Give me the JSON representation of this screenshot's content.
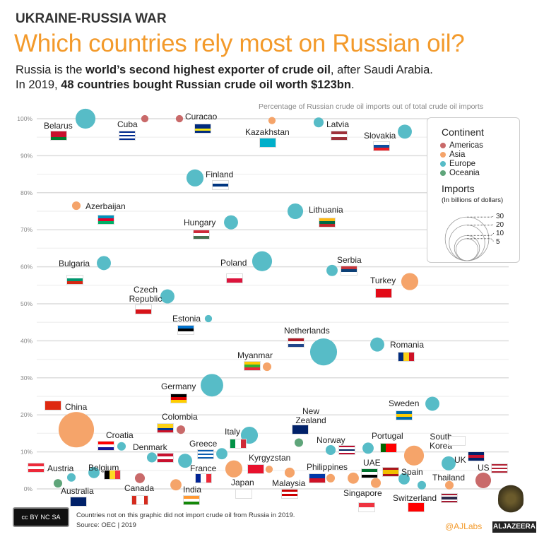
{
  "header": {
    "kicker": "UKRAINE-RUSSIA WAR",
    "title": "Which countries rely most on Russian oil?",
    "sub1_a": "Russia is the ",
    "sub1_b": "world’s second highest exporter of crude oil",
    "sub1_c": ", after Saudi Arabia.",
    "sub2_a": "In 2019, ",
    "sub2_b": "48 countries bought Russian crude oil worth $123bn",
    "sub2_c": "."
  },
  "footer": {
    "note": "Countries not on this graphic did not import crude oil from Russia in 2019.",
    "source": "Source: OEC | 2019",
    "cc": [
      "cc",
      "BY",
      "NC",
      "SA"
    ],
    "handle": "@AJLabs",
    "brand": "ALJAZEERA"
  },
  "chart_data": {
    "type": "scatter",
    "title": "Percentage of Russian crude oil imports out of total crude oil imports",
    "ylim": [
      0,
      100
    ],
    "yticks": [
      "0%",
      "10%",
      "20%",
      "30%",
      "40%",
      "50%",
      "60%",
      "70%",
      "80%",
      "90%",
      "100%"
    ],
    "grid": true,
    "legend_placement": "top-right",
    "legend": {
      "continent_title": "Continent",
      "imports_title": "Imports",
      "imports_sub": "(In billions of dollars)",
      "size_ticks": [
        30,
        20,
        10,
        5
      ],
      "continents": [
        {
          "name": "Americas",
          "color": "#c96a6a"
        },
        {
          "name": "Asia",
          "color": "#f5a46a"
        },
        {
          "name": "Europe",
          "color": "#57bcc7"
        },
        {
          "name": "Oceania",
          "color": "#5fa57a"
        }
      ]
    },
    "points": [
      {
        "name": "Belarus",
        "continent": "Europe",
        "pct": 100,
        "imports": 6,
        "flag": {
          "dir": "h",
          "colors": [
            "#c8102e",
            "#c8102e",
            "#007c30"
          ]
        }
      },
      {
        "name": "Cuba",
        "continent": "Americas",
        "pct": 100,
        "imports": 0.8,
        "flag": {
          "dir": "h",
          "colors": [
            "#002a8f",
            "#fff",
            "#002a8f",
            "#fff",
            "#002a8f"
          ]
        }
      },
      {
        "name": "Curacao",
        "continent": "Americas",
        "pct": 100,
        "imports": 0.8,
        "flag": {
          "dir": "h",
          "colors": [
            "#002b7f",
            "#002b7f",
            "#f9e814",
            "#002b7f"
          ]
        }
      },
      {
        "name": "Kazakhstan",
        "continent": "Asia",
        "pct": 99.5,
        "imports": 0.8,
        "flag": {
          "dir": "h",
          "colors": [
            "#00afca"
          ]
        }
      },
      {
        "name": "Latvia",
        "continent": "Europe",
        "pct": 99,
        "imports": 1.5,
        "flag": {
          "dir": "h",
          "colors": [
            "#9e3039",
            "#fff",
            "#9e3039"
          ]
        }
      },
      {
        "name": "Slovakia",
        "continent": "Europe",
        "pct": 96.5,
        "imports": 3,
        "flag": {
          "dir": "h",
          "colors": [
            "#fff",
            "#0b4ea2",
            "#ee1c25"
          ]
        }
      },
      {
        "name": "Finland",
        "continent": "Europe",
        "pct": 84,
        "imports": 4.4,
        "flag": {
          "dir": "h",
          "colors": [
            "#fff",
            "#003580",
            "#fff"
          ]
        }
      },
      {
        "name": "Azerbaijan",
        "continent": "Asia",
        "pct": 76.5,
        "imports": 1.1,
        "flag": {
          "dir": "h",
          "colors": [
            "#0092bc",
            "#e4002b",
            "#00af66"
          ]
        }
      },
      {
        "name": "Hungary",
        "continent": "Europe",
        "pct": 72,
        "imports": 3,
        "flag": {
          "dir": "h",
          "colors": [
            "#ce2939",
            "#fff",
            "#477050"
          ]
        }
      },
      {
        "name": "Lithuania",
        "continent": "Europe",
        "pct": 75,
        "imports": 3.7,
        "flag": {
          "dir": "h",
          "colors": [
            "#fdb913",
            "#006a44",
            "#c1272d"
          ]
        }
      },
      {
        "name": "Bulgaria",
        "continent": "Europe",
        "pct": 61,
        "imports": 3,
        "flag": {
          "dir": "h",
          "colors": [
            "#fff",
            "#00966e",
            "#d62612"
          ]
        }
      },
      {
        "name": "Poland",
        "continent": "Europe",
        "pct": 61.5,
        "imports": 6,
        "flag": {
          "dir": "h",
          "colors": [
            "#fff",
            "#dc143c"
          ]
        }
      },
      {
        "name": "Serbia",
        "continent": "Europe",
        "pct": 59,
        "imports": 1.9,
        "flag": {
          "dir": "h",
          "colors": [
            "#c6363c",
            "#0c4076",
            "#fff"
          ]
        }
      },
      {
        "name": "Turkey",
        "continent": "Asia",
        "pct": 56,
        "imports": 4.4,
        "flag": {
          "dir": "h",
          "colors": [
            "#e30a17"
          ]
        }
      },
      {
        "name": "Czech Republic",
        "continent": "Europe",
        "pct": 52,
        "imports": 3,
        "flag": {
          "dir": "h",
          "colors": [
            "#fff",
            "#d7141a"
          ]
        }
      },
      {
        "name": "Estonia",
        "continent": "Europe",
        "pct": 46,
        "imports": 0.8,
        "flag": {
          "dir": "h",
          "colors": [
            "#0072ce",
            "#000",
            "#fff"
          ]
        }
      },
      {
        "name": "Netherlands",
        "continent": "Europe",
        "pct": 37,
        "imports": 11,
        "flag": {
          "dir": "h",
          "colors": [
            "#ae1c28",
            "#fff",
            "#21468b"
          ]
        }
      },
      {
        "name": "Romania",
        "continent": "Europe",
        "pct": 39,
        "imports": 3,
        "flag": {
          "dir": "v",
          "colors": [
            "#002b7f",
            "#fcd116",
            "#ce1126"
          ]
        }
      },
      {
        "name": "Myanmar",
        "continent": "Asia",
        "pct": 33,
        "imports": 1.1,
        "flag": {
          "dir": "h",
          "colors": [
            "#fecb00",
            "#34b233",
            "#ea2839"
          ]
        }
      },
      {
        "name": "Germany",
        "continent": "Europe",
        "pct": 28,
        "imports": 7.7,
        "flag": {
          "dir": "h",
          "colors": [
            "#000",
            "#dd0000",
            "#ffce00"
          ]
        }
      },
      {
        "name": "Sweden",
        "continent": "Europe",
        "pct": 23,
        "imports": 3,
        "flag": {
          "dir": "h",
          "colors": [
            "#006aa7",
            "#fecc00",
            "#006aa7"
          ]
        }
      },
      {
        "name": "China",
        "continent": "Asia",
        "pct": 16,
        "imports": 19,
        "flag": {
          "dir": "h",
          "colors": [
            "#de2910"
          ]
        }
      },
      {
        "name": "Colombia",
        "continent": "Americas",
        "pct": 16,
        "imports": 1.1,
        "flag": {
          "dir": "h",
          "colors": [
            "#fcd116",
            "#fcd116",
            "#003893",
            "#ce1126"
          ]
        }
      },
      {
        "name": "Croatia",
        "continent": "Europe",
        "pct": 11.5,
        "imports": 1.1,
        "flag": {
          "dir": "h",
          "colors": [
            "#ff0000",
            "#fff",
            "#171796"
          ]
        }
      },
      {
        "name": "Italy",
        "continent": "Europe",
        "pct": 14.5,
        "imports": 4.4,
        "flag": {
          "dir": "v",
          "colors": [
            "#009246",
            "#fff",
            "#ce2b37"
          ]
        }
      },
      {
        "name": "New Zealand",
        "continent": "Oceania",
        "pct": 12.5,
        "imports": 1.1,
        "flag": {
          "dir": "h",
          "colors": [
            "#012169"
          ]
        }
      },
      {
        "name": "Denmark",
        "continent": "Europe",
        "pct": 8.5,
        "imports": 1.5,
        "flag": {
          "dir": "h",
          "colors": [
            "#c8102e",
            "#fff",
            "#c8102e"
          ]
        }
      },
      {
        "name": "Greece",
        "continent": "Europe",
        "pct": 9.5,
        "imports": 1.9,
        "flag": {
          "dir": "h",
          "colors": [
            "#0d5eaf",
            "#fff",
            "#0d5eaf",
            "#fff",
            "#0d5eaf"
          ]
        }
      },
      {
        "name": "France",
        "continent": "Europe",
        "pct": 7.6,
        "imports": 3,
        "flag": {
          "dir": "v",
          "colors": [
            "#002395",
            "#fff",
            "#ed2939"
          ]
        }
      },
      {
        "name": "Japan",
        "continent": "Asia",
        "pct": 5.4,
        "imports": 4.4,
        "flag": {
          "dir": "h",
          "colors": [
            "#fff"
          ]
        }
      },
      {
        "name": "Kyrgyzstan",
        "continent": "Asia",
        "pct": 5.3,
        "imports": 0.8,
        "flag": {
          "dir": "h",
          "colors": [
            "#e8112d"
          ]
        }
      },
      {
        "name": "Malaysia",
        "continent": "Asia",
        "pct": 4.4,
        "imports": 1.5,
        "flag": {
          "dir": "h",
          "colors": [
            "#cc0001",
            "#fff",
            "#cc0001",
            "#fff"
          ]
        }
      },
      {
        "name": "Norway",
        "continent": "Europe",
        "pct": 10.5,
        "imports": 1.5,
        "flag": {
          "dir": "h",
          "colors": [
            "#ba0c2f",
            "#fff",
            "#00205b",
            "#fff",
            "#ba0c2f"
          ]
        }
      },
      {
        "name": "Portugal",
        "continent": "Europe",
        "pct": 11,
        "imports": 1.9,
        "flag": {
          "dir": "v",
          "colors": [
            "#006600",
            "#ff0000",
            "#ff0000"
          ]
        }
      },
      {
        "name": "South Korea",
        "continent": "Asia",
        "pct": 9,
        "imports": 6,
        "flag": {
          "dir": "h",
          "colors": [
            "#fff"
          ]
        }
      },
      {
        "name": "UK",
        "continent": "Europe",
        "pct": 6.9,
        "imports": 3,
        "flag": {
          "dir": "h",
          "colors": [
            "#012169",
            "#c8102e",
            "#012169"
          ]
        }
      },
      {
        "name": "US",
        "continent": "Americas",
        "pct": 2.3,
        "imports": 3.7,
        "flag": {
          "dir": "h",
          "colors": [
            "#b22234",
            "#fff",
            "#b22234",
            "#fff",
            "#b22234"
          ]
        }
      },
      {
        "name": "Austria",
        "continent": "Europe",
        "pct": 3.1,
        "imports": 1.1,
        "flag": {
          "dir": "h",
          "colors": [
            "#ed2939",
            "#fff",
            "#ed2939"
          ]
        }
      },
      {
        "name": "Australia",
        "continent": "Oceania",
        "pct": 1.5,
        "imports": 1.1,
        "flag": {
          "dir": "h",
          "colors": [
            "#012169"
          ]
        }
      },
      {
        "name": "Belgium",
        "continent": "Europe",
        "pct": 4.4,
        "imports": 1.9,
        "flag": {
          "dir": "v",
          "colors": [
            "#000",
            "#fdda24",
            "#ef3340"
          ]
        }
      },
      {
        "name": "Canada",
        "continent": "Americas",
        "pct": 2.9,
        "imports": 1.5,
        "flag": {
          "dir": "v",
          "colors": [
            "#d52b1e",
            "#fff",
            "#fff",
            "#d52b1e"
          ]
        }
      },
      {
        "name": "India",
        "continent": "Asia",
        "pct": 1.1,
        "imports": 1.9,
        "flag": {
          "dir": "h",
          "colors": [
            "#ff9933",
            "#fff",
            "#138808"
          ]
        }
      },
      {
        "name": "Philippines",
        "continent": "Asia",
        "pct": 2.9,
        "imports": 1.1,
        "flag": {
          "dir": "h",
          "colors": [
            "#0038a8",
            "#ce1126"
          ]
        }
      },
      {
        "name": "UAE",
        "continent": "Asia",
        "pct": 2.9,
        "imports": 1.9,
        "flag": {
          "dir": "h",
          "colors": [
            "#00732f",
            "#fff",
            "#000"
          ]
        }
      },
      {
        "name": "Singapore",
        "continent": "Asia",
        "pct": 1.6,
        "imports": 1.5,
        "flag": {
          "dir": "h",
          "colors": [
            "#ef3340",
            "#fff"
          ]
        }
      },
      {
        "name": "Spain",
        "continent": "Europe",
        "pct": 2.7,
        "imports": 1.9,
        "flag": {
          "dir": "h",
          "colors": [
            "#aa151b",
            "#f1bf00",
            "#f1bf00",
            "#aa151b"
          ]
        }
      },
      {
        "name": "Switzerland",
        "continent": "Europe",
        "pct": 1,
        "imports": 1.1,
        "flag": {
          "dir": "h",
          "colors": [
            "#ff0000"
          ]
        }
      },
      {
        "name": "Thailand",
        "continent": "Asia",
        "pct": 1,
        "imports": 1.1,
        "flag": {
          "dir": "h",
          "colors": [
            "#a51931",
            "#fff",
            "#2d2a4a",
            "#2d2a4a",
            "#fff",
            "#a51931"
          ]
        }
      }
    ]
  }
}
